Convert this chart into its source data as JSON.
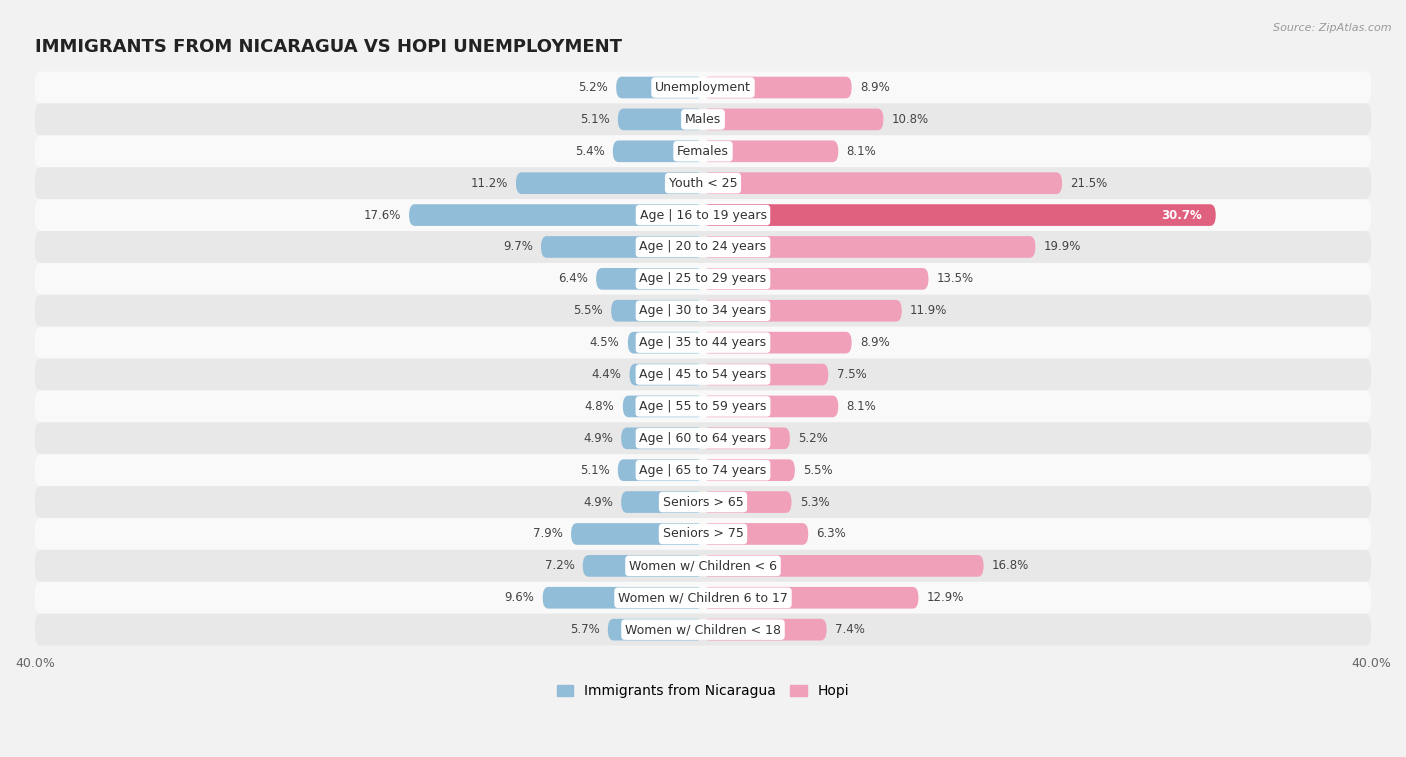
{
  "title": "IMMIGRANTS FROM NICARAGUA VS HOPI UNEMPLOYMENT",
  "source": "Source: ZipAtlas.com",
  "categories": [
    "Unemployment",
    "Males",
    "Females",
    "Youth < 25",
    "Age | 16 to 19 years",
    "Age | 20 to 24 years",
    "Age | 25 to 29 years",
    "Age | 30 to 34 years",
    "Age | 35 to 44 years",
    "Age | 45 to 54 years",
    "Age | 55 to 59 years",
    "Age | 60 to 64 years",
    "Age | 65 to 74 years",
    "Seniors > 65",
    "Seniors > 75",
    "Women w/ Children < 6",
    "Women w/ Children 6 to 17",
    "Women w/ Children < 18"
  ],
  "nicaragua_values": [
    5.2,
    5.1,
    5.4,
    11.2,
    17.6,
    9.7,
    6.4,
    5.5,
    4.5,
    4.4,
    4.8,
    4.9,
    5.1,
    4.9,
    7.9,
    7.2,
    9.6,
    5.7
  ],
  "hopi_values": [
    8.9,
    10.8,
    8.1,
    21.5,
    30.7,
    19.9,
    13.5,
    11.9,
    8.9,
    7.5,
    8.1,
    5.2,
    5.5,
    5.3,
    6.3,
    16.8,
    12.9,
    7.4
  ],
  "nicaragua_color": "#92bdd8",
  "hopi_color": "#f0a0b8",
  "hopi_highlight_color": "#e06080",
  "background_color": "#f2f2f2",
  "row_color_light": "#f9f9f9",
  "row_color_dark": "#e8e8e8",
  "axis_limit": 40.0,
  "bar_height": 0.68,
  "title_fontsize": 13,
  "label_fontsize": 9,
  "value_fontsize": 8.5,
  "legend_fontsize": 10
}
